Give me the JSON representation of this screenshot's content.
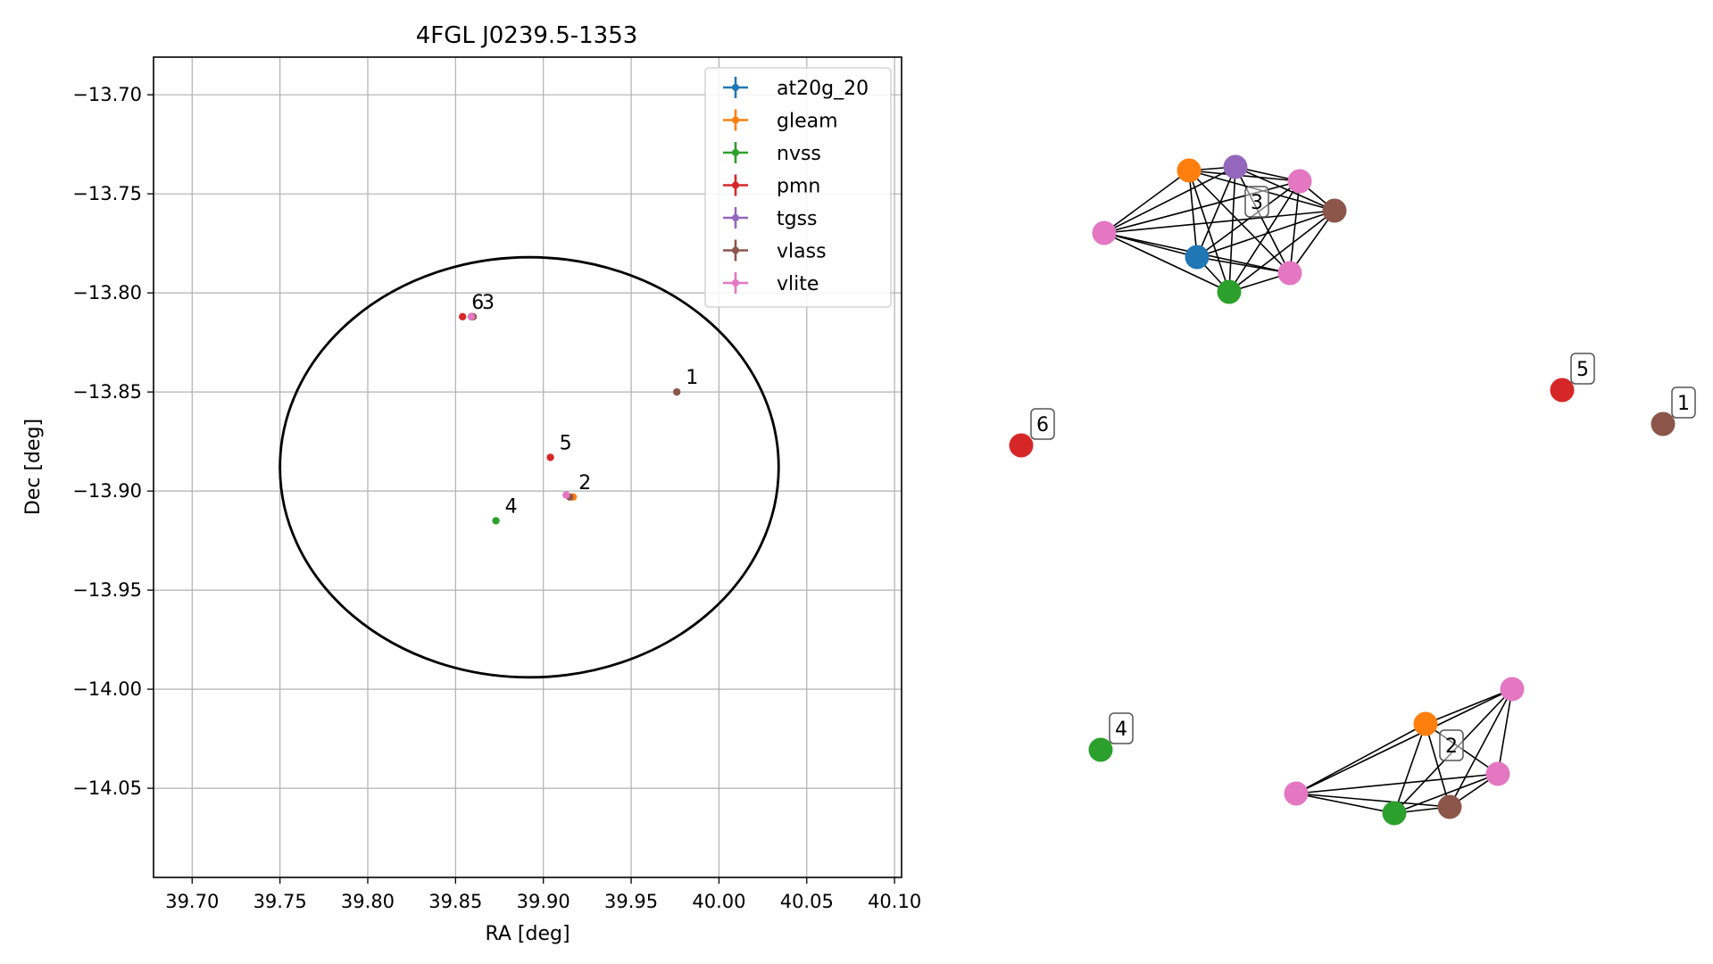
{
  "chart_data": [
    {
      "type": "scatter",
      "title": "4FGL J0239.5-1353",
      "xlabel": "RA [deg]",
      "ylabel": "Dec [deg]",
      "xlim": [
        39.678,
        40.104
      ],
      "ylim": [
        -14.095,
        -13.681
      ],
      "x_ticks": [
        "39.70",
        "39.75",
        "39.80",
        "39.85",
        "39.90",
        "39.95",
        "40.00",
        "40.05",
        "40.10"
      ],
      "x_tick_values": [
        39.7,
        39.75,
        39.8,
        39.85,
        39.9,
        39.95,
        40.0,
        40.05,
        40.1
      ],
      "y_ticks": [
        "−13.70",
        "−13.75",
        "−13.80",
        "−13.85",
        "−13.90",
        "−13.95",
        "−14.00",
        "−14.05"
      ],
      "y_tick_values": [
        -13.7,
        -13.75,
        -13.8,
        -13.85,
        -13.9,
        -13.95,
        -14.0,
        -14.05
      ],
      "grid": true,
      "legend_position": "top-right",
      "ellipse": {
        "center": [
          39.892,
          -13.888
        ],
        "semi_axis_ra": 0.142,
        "semi_axis_dec": 0.106,
        "color": "#000000"
      },
      "series": [
        {
          "name": "at20g_20",
          "color": "#1f77b4",
          "points": [
            [
              39.859,
              -13.812
            ]
          ]
        },
        {
          "name": "gleam",
          "color": "#ff7f0e",
          "points": [
            [
              39.917,
              -13.903
            ]
          ]
        },
        {
          "name": "nvss",
          "color": "#2ca02c",
          "points": [
            [
              39.873,
              -13.915
            ],
            [
              39.859,
              -13.812
            ]
          ]
        },
        {
          "name": "pmn",
          "color": "#d62728",
          "points": [
            [
              39.904,
              -13.883
            ],
            [
              39.854,
              -13.812
            ]
          ]
        },
        {
          "name": "tgss",
          "color": "#9467bd",
          "points": [
            [
              39.859,
              -13.812
            ]
          ]
        },
        {
          "name": "vlass",
          "color": "#8c564b",
          "points": [
            [
              39.976,
              -13.85
            ],
            [
              39.915,
              -13.903
            ],
            [
              39.86,
              -13.812
            ]
          ]
        },
        {
          "name": "vlite",
          "color": "#e377c2",
          "points": [
            [
              39.913,
              -13.902
            ],
            [
              39.859,
              -13.812
            ]
          ]
        }
      ],
      "annotations": [
        {
          "text": "1",
          "x": 39.976,
          "y": -13.85
        },
        {
          "text": "2",
          "x": 39.915,
          "y": -13.903
        },
        {
          "text": "3",
          "x": 39.86,
          "y": -13.812
        },
        {
          "text": "4",
          "x": 39.873,
          "y": -13.915
        },
        {
          "text": "5",
          "x": 39.904,
          "y": -13.883
        },
        {
          "text": "6",
          "x": 39.854,
          "y": -13.812
        }
      ]
    },
    {
      "type": "network",
      "clusters": [
        {
          "label": "3",
          "nodes": [
            {
              "survey": "gleam",
              "color": "#ff7f0e"
            },
            {
              "survey": "tgss",
              "color": "#9467bd"
            },
            {
              "survey": "vlite",
              "color": "#e377c2"
            },
            {
              "survey": "vlass",
              "color": "#8c564b"
            },
            {
              "survey": "vlite",
              "color": "#e377c2"
            },
            {
              "survey": "at20g_20",
              "color": "#1f77b4"
            },
            {
              "survey": "vlite",
              "color": "#e377c2"
            },
            {
              "survey": "nvss",
              "color": "#2ca02c"
            }
          ]
        },
        {
          "label": "2",
          "nodes": [
            {
              "survey": "vlite",
              "color": "#e377c2"
            },
            {
              "survey": "gleam",
              "color": "#ff7f0e"
            },
            {
              "survey": "vlite",
              "color": "#e377c2"
            },
            {
              "survey": "vlite",
              "color": "#e377c2"
            },
            {
              "survey": "nvss",
              "color": "#2ca02c"
            },
            {
              "survey": "vlass",
              "color": "#8c564b"
            }
          ]
        },
        {
          "label": "5",
          "nodes": [
            {
              "survey": "pmn",
              "color": "#d62728"
            }
          ]
        },
        {
          "label": "1",
          "nodes": [
            {
              "survey": "vlass",
              "color": "#8c564b"
            }
          ]
        },
        {
          "label": "6",
          "nodes": [
            {
              "survey": "pmn",
              "color": "#d62728"
            }
          ]
        },
        {
          "label": "4",
          "nodes": [
            {
              "survey": "nvss",
              "color": "#2ca02c"
            }
          ]
        }
      ]
    }
  ]
}
